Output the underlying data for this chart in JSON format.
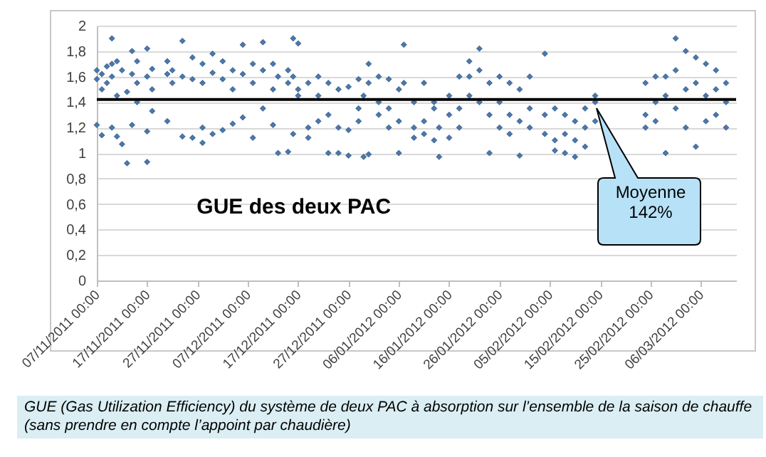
{
  "chart_data": {
    "type": "scatter",
    "title": "GUE des deux PAC",
    "annotations": [
      "GUE (Gas Utilization  Efficiency) du système de deux PAC à absorption sur l’ensemble de la saison de chauffe (sans prendre en compte l’appoint par chaudière)"
    ],
    "series": [
      {
        "color": "#4a77ac",
        "x": [
          "2011-11-07",
          "2011-11-07",
          "2011-11-07",
          "2011-11-08",
          "2011-11-08",
          "2011-11-08",
          "2011-11-09",
          "2011-11-09",
          "2011-11-10",
          "2011-11-10",
          "2011-11-10",
          "2011-11-10",
          "2011-11-11",
          "2011-11-11",
          "2011-11-11",
          "2011-11-12",
          "2011-11-12",
          "2011-11-13",
          "2011-11-13",
          "2011-11-14",
          "2011-11-14",
          "2011-11-14",
          "2011-11-15",
          "2011-11-15",
          "2011-11-15",
          "2011-11-17",
          "2011-11-17",
          "2011-11-17",
          "2011-11-17",
          "2011-11-18",
          "2011-11-18",
          "2011-11-18",
          "2011-11-21",
          "2011-11-21",
          "2011-11-21",
          "2011-11-22",
          "2011-11-22",
          "2011-11-24",
          "2011-11-24",
          "2011-11-24",
          "2011-11-26",
          "2011-11-26",
          "2011-11-26",
          "2011-11-28",
          "2011-11-28",
          "2011-11-28",
          "2011-11-28",
          "2011-11-30",
          "2011-11-30",
          "2011-11-30",
          "2011-12-02",
          "2011-12-02",
          "2011-12-02",
          "2011-12-04",
          "2011-12-04",
          "2011-12-04",
          "2011-12-06",
          "2011-12-06",
          "2011-12-06",
          "2011-12-08",
          "2011-12-08",
          "2011-12-08",
          "2011-12-10",
          "2011-12-10",
          "2011-12-10",
          "2011-12-12",
          "2011-12-12",
          "2011-12-12",
          "2011-12-13",
          "2011-12-13",
          "2011-12-15",
          "2011-12-15",
          "2011-12-15",
          "2011-12-16",
          "2011-12-16",
          "2011-12-16",
          "2011-12-17",
          "2011-12-17",
          "2011-12-17",
          "2011-12-19",
          "2011-12-19",
          "2011-12-19",
          "2011-12-21",
          "2011-12-21",
          "2011-12-21",
          "2011-12-23",
          "2011-12-23",
          "2011-12-23",
          "2011-12-25",
          "2011-12-25",
          "2011-12-25",
          "2011-12-27",
          "2011-12-27",
          "2011-12-27",
          "2011-12-29",
          "2011-12-29",
          "2011-12-29",
          "2011-12-30",
          "2011-12-30",
          "2011-12-31",
          "2011-12-31",
          "2011-12-31",
          "2012-01-02",
          "2012-01-02",
          "2012-01-02",
          "2012-01-04",
          "2012-01-04",
          "2012-01-04",
          "2012-01-06",
          "2012-01-06",
          "2012-01-06",
          "2012-01-07",
          "2012-01-07",
          "2012-01-09",
          "2012-01-09",
          "2012-01-09",
          "2012-01-11",
          "2012-01-11",
          "2012-01-11",
          "2012-01-13",
          "2012-01-13",
          "2012-01-13",
          "2012-01-14",
          "2012-01-14",
          "2012-01-16",
          "2012-01-16",
          "2012-01-16",
          "2012-01-18",
          "2012-01-18",
          "2012-01-18",
          "2012-01-20",
          "2012-01-20",
          "2012-01-20",
          "2012-01-22",
          "2012-01-22",
          "2012-01-22",
          "2012-01-24",
          "2012-01-24",
          "2012-01-24",
          "2012-01-26",
          "2012-01-26",
          "2012-01-26",
          "2012-01-28",
          "2012-01-28",
          "2012-01-28",
          "2012-01-30",
          "2012-01-30",
          "2012-01-30",
          "2012-02-01",
          "2012-02-01",
          "2012-02-01",
          "2012-02-04",
          "2012-02-04",
          "2012-02-04",
          "2012-02-06",
          "2012-02-06",
          "2012-02-06",
          "2012-02-08",
          "2012-02-08",
          "2012-02-08",
          "2012-02-10",
          "2012-02-10",
          "2012-02-10",
          "2012-02-12",
          "2012-02-12",
          "2012-02-12",
          "2012-02-14",
          "2012-02-14",
          "2012-02-14",
          "2012-02-24",
          "2012-02-24",
          "2012-02-24",
          "2012-02-26",
          "2012-02-26",
          "2012-02-26",
          "2012-02-28",
          "2012-02-28",
          "2012-02-28",
          "2012-03-01",
          "2012-03-01",
          "2012-03-01",
          "2012-03-03",
          "2012-03-03",
          "2012-03-03",
          "2012-03-05",
          "2012-03-05",
          "2012-03-05",
          "2012-03-07",
          "2012-03-07",
          "2012-03-07",
          "2012-03-09",
          "2012-03-09",
          "2012-03-09",
          "2012-03-11",
          "2012-03-11",
          "2012-03-11"
        ],
        "values": [
          1.58,
          1.65,
          1.22,
          1.62,
          1.5,
          1.14,
          1.68,
          1.55,
          1.9,
          1.7,
          1.2,
          1.6,
          1.72,
          1.45,
          1.13,
          1.65,
          1.07,
          0.92,
          1.48,
          1.8,
          1.62,
          1.22,
          1.72,
          1.55,
          1.4,
          0.93,
          1.82,
          1.6,
          1.17,
          1.66,
          1.33,
          1.5,
          1.72,
          1.62,
          1.25,
          1.65,
          1.55,
          1.88,
          1.6,
          1.13,
          1.75,
          1.58,
          1.12,
          1.7,
          1.55,
          1.2,
          1.08,
          1.78,
          1.63,
          1.15,
          1.72,
          1.58,
          1.18,
          1.65,
          1.5,
          1.23,
          1.85,
          1.62,
          1.28,
          1.7,
          1.55,
          1.12,
          1.87,
          1.65,
          1.35,
          1.7,
          1.5,
          1.22,
          1.0,
          1.6,
          1.01,
          1.55,
          1.65,
          1.9,
          1.6,
          1.15,
          1.86,
          1.5,
          1.45,
          1.55,
          1.2,
          1.12,
          1.6,
          1.45,
          1.25,
          1.55,
          1.3,
          1.0,
          1.5,
          1.2,
          1.0,
          1.52,
          1.18,
          0.98,
          1.58,
          1.25,
          1.35,
          1.45,
          0.97,
          1.7,
          0.99,
          1.55,
          1.6,
          1.4,
          1.3,
          1.58,
          1.35,
          1.2,
          1.0,
          1.5,
          1.25,
          1.85,
          1.55,
          1.4,
          1.2,
          1.12,
          1.55,
          1.25,
          1.15,
          1.35,
          1.1,
          1.4,
          0.97,
          1.2,
          1.3,
          1.12,
          1.45,
          1.6,
          1.35,
          1.2,
          1.72,
          1.6,
          1.45,
          1.82,
          1.65,
          1.4,
          1.0,
          1.55,
          1.3,
          1.6,
          1.4,
          1.2,
          1.55,
          1.3,
          1.15,
          0.98,
          1.5,
          1.25,
          1.6,
          1.35,
          1.2,
          1.78,
          1.3,
          1.15,
          1.35,
          1.1,
          1.02,
          1.3,
          1.15,
          1.0,
          0.97,
          1.25,
          1.1,
          1.35,
          1.2,
          1.05,
          1.45,
          1.4,
          1.25,
          1.55,
          1.3,
          1.2,
          1.6,
          1.4,
          1.25,
          1.0,
          1.45,
          1.6,
          1.9,
          1.65,
          1.35,
          1.8,
          1.5,
          1.2,
          1.75,
          1.55,
          1.05,
          1.7,
          1.45,
          1.25,
          1.65,
          1.5,
          1.3,
          1.55,
          1.4,
          1.2
        ]
      }
    ],
    "xlim": [
      "2011-11-07",
      "2012-03-13"
    ],
    "xticks": [
      {
        "value": "2011-11-07",
        "label": "07/11/2011 00:00"
      },
      {
        "value": "2011-11-17",
        "label": "17/11/2011 00:00"
      },
      {
        "value": "2011-11-27",
        "label": "27/11/2011 00:00"
      },
      {
        "value": "2011-12-07",
        "label": "07/12/2011 00:00"
      },
      {
        "value": "2011-12-17",
        "label": "17/12/2011 00:00"
      },
      {
        "value": "2011-12-27",
        "label": "27/12/2011 00:00"
      },
      {
        "value": "2012-01-06",
        "label": "06/01/2012 00:00"
      },
      {
        "value": "2012-01-16",
        "label": "16/01/2012 00:00"
      },
      {
        "value": "2012-01-26",
        "label": "26/01/2012 00:00"
      },
      {
        "value": "2012-02-05",
        "label": "05/02/2012 00:00"
      },
      {
        "value": "2012-02-15",
        "label": "15/02/2012 00:00"
      },
      {
        "value": "2012-02-25",
        "label": "25/02/2012 00:00"
      },
      {
        "value": "2012-03-06",
        "label": "06/03/2012 00:00"
      }
    ],
    "ylim": [
      0,
      2
    ],
    "yticks": [
      0,
      {
        "value": 0.2,
        "label": "0,2"
      },
      {
        "value": 0.4,
        "label": "0,4"
      },
      {
        "value": 0.6,
        "label": "0,6"
      },
      {
        "value": 0.8,
        "label": "0,8"
      },
      1,
      {
        "value": 1.2,
        "label": "1,2"
      },
      {
        "value": 1.4,
        "label": "1,4"
      },
      {
        "value": 1.6,
        "label": "1,6"
      },
      {
        "value": 1.8,
        "label": "1,8"
      },
      2
    ],
    "ref_lines": [
      {
        "axis": "y",
        "value": 1.42,
        "label": "Moyenne 142%",
        "color": "#000000"
      }
    ],
    "grid": "y",
    "marker": "diamond"
  }
}
